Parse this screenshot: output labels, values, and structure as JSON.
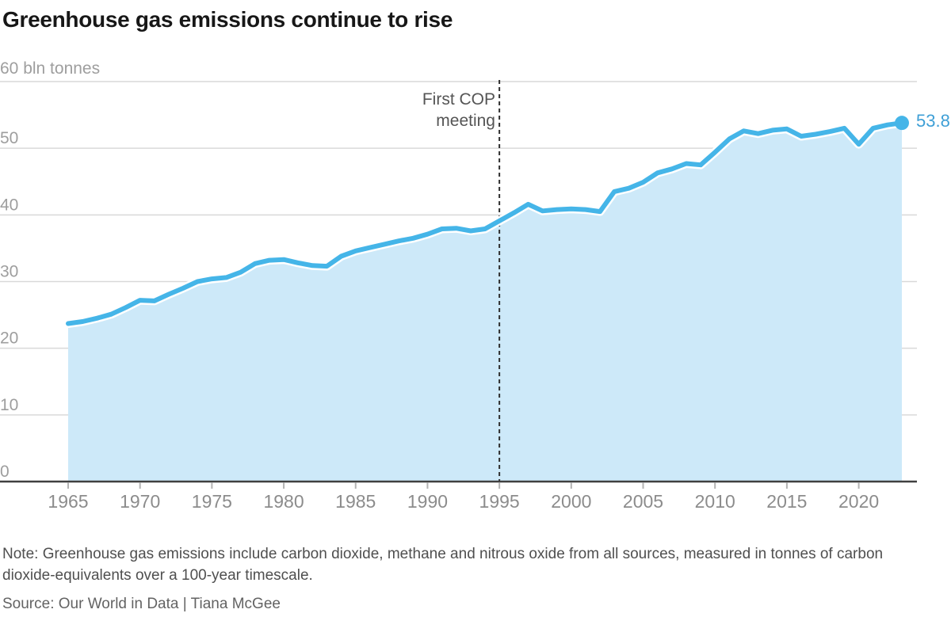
{
  "title": "Greenhouse gas emissions continue to rise",
  "chart_data": {
    "type": "area",
    "title": "Greenhouse gas emissions continue to rise",
    "ylabel": "60 bln tonnes",
    "xlabel": "",
    "ylim": [
      0,
      60
    ],
    "xlim": [
      1965,
      2023
    ],
    "grid": true,
    "x": [
      1965,
      1966,
      1967,
      1968,
      1969,
      1970,
      1971,
      1972,
      1973,
      1974,
      1975,
      1976,
      1977,
      1978,
      1979,
      1980,
      1981,
      1982,
      1983,
      1984,
      1985,
      1986,
      1987,
      1988,
      1989,
      1990,
      1991,
      1992,
      1993,
      1994,
      1995,
      1996,
      1997,
      1998,
      1999,
      2000,
      2001,
      2002,
      2003,
      2004,
      2005,
      2006,
      2007,
      2008,
      2009,
      2010,
      2011,
      2012,
      2013,
      2014,
      2015,
      2016,
      2017,
      2018,
      2019,
      2020,
      2021,
      2022,
      2023
    ],
    "values": [
      23.7,
      24.0,
      24.5,
      25.1,
      26.1,
      27.2,
      27.1,
      28.1,
      29.0,
      30.0,
      30.4,
      30.6,
      31.4,
      32.7,
      33.2,
      33.3,
      32.8,
      32.4,
      32.3,
      33.8,
      34.6,
      35.1,
      35.6,
      36.1,
      36.5,
      37.1,
      37.9,
      38.0,
      37.6,
      37.9,
      39.1,
      40.3,
      41.6,
      40.6,
      40.8,
      40.9,
      40.8,
      40.5,
      43.5,
      44.0,
      44.9,
      46.3,
      46.9,
      47.7,
      47.5,
      49.4,
      51.4,
      52.6,
      52.2,
      52.7,
      52.9,
      51.8,
      52.1,
      52.5,
      53.0,
      50.6,
      53.0,
      53.5,
      53.8
    ],
    "x_tick_labels": [
      "1965",
      "1970",
      "1975",
      "1980",
      "1985",
      "1990",
      "1995",
      "2000",
      "2005",
      "2010",
      "2015",
      "2020"
    ],
    "x_tick_values": [
      1965,
      1970,
      1975,
      1980,
      1985,
      1990,
      1995,
      2000,
      2005,
      2010,
      2015,
      2020
    ],
    "y_tick_labels": [
      "0",
      "10",
      "20",
      "30",
      "40",
      "50"
    ],
    "y_tick_values": [
      0,
      10,
      20,
      30,
      40,
      50
    ],
    "y_top_label": "60 bln tonnes",
    "annotation": {
      "lines": [
        "First COP",
        "meeting"
      ],
      "x_year": 1995
    },
    "end_label": "53.8",
    "end_value": 53.8,
    "end_year": 2023,
    "colors": {
      "line": "#45b5e8",
      "fill": "#cde9f9",
      "grid": "#d9d9d9",
      "axis": "#404040",
      "tick": "#b3b3b3",
      "dashed": "#2e2e2e",
      "end_label": "#3e9fd6",
      "x_label": "#8c8c8c",
      "y_label": "#9e9e9e"
    }
  },
  "note": "Note: Greenhouse gas emissions include carbon dioxide, methane and nitrous oxide from all sources, measured in tonnes of carbon dioxide-equivalents over a 100-year timescale.",
  "source": "Source: Our World in Data | Tiana McGee"
}
